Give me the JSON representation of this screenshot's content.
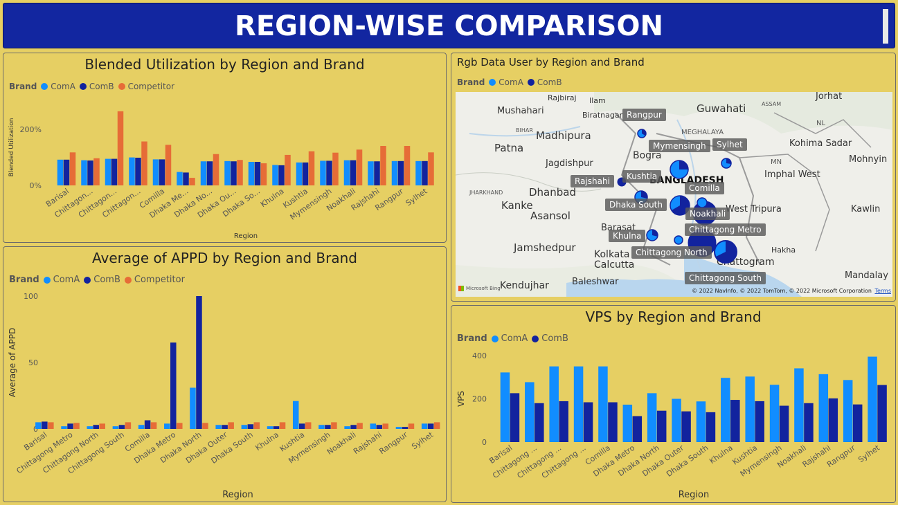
{
  "page_title": "REGION-WISE COMPARISON",
  "colors": {
    "comA": "#118dff",
    "comB": "#12239e",
    "competitor": "#e66c37",
    "background": "#e6cf63",
    "title_bg": "#1226a0"
  },
  "panel1": {
    "title": "Blended Utilization by Region and Brand",
    "legend": {
      "title": "Brand",
      "items": [
        "ComA",
        "ComB",
        "Competitor"
      ]
    },
    "xlabel": "Region",
    "ylabel": "Blended Utilization",
    "ticks": [
      "0%",
      "200%"
    ]
  },
  "panel2": {
    "title": "Average of APPD by Region and Brand",
    "legend": {
      "title": "Brand",
      "items": [
        "ComA",
        "ComB",
        "Competitor"
      ]
    },
    "xlabel": "Region",
    "ylabel": "Average of APPD",
    "ticks": [
      "0",
      "50",
      "100"
    ]
  },
  "panel3": {
    "title": "Rgb Data User by Region and Brand",
    "legend": {
      "title": "Brand",
      "items": [
        "ComA",
        "ComB"
      ]
    },
    "map_places": [
      "Rajbiraj",
      "Ilam",
      "Mushahari",
      "Biratnagar",
      "Madhipura",
      "Patna",
      "Jagdishpur",
      "Bogra",
      "Guwahati",
      "Jorhat",
      "Kohima Sadar",
      "Mohnyin",
      "Imphal West",
      "Dhanbad",
      "Kanke",
      "Asansol",
      "Jamshedpur",
      "Kolkata Calcutta",
      "Baleshwar",
      "Kendujhar",
      "Barasat",
      "West Tripura",
      "Kawlin",
      "Hakha",
      "Mandalay",
      "BANGLADESH",
      "MEGHALAYA",
      "ASSAM",
      "NL",
      "MN",
      "JHARKHAND",
      "BIHAR",
      "Chattogram"
    ],
    "bubble_labels": [
      "Rangpur",
      "Mymensingh",
      "Sylhet",
      "Kushtia",
      "Rajshahi",
      "Comilla",
      "Dhaka South",
      "Noakhali",
      "Khulna",
      "Chittagong Metro",
      "Chittagong North",
      "Chittagong South"
    ],
    "copyright": "© 2022 NavInfo, © 2022 TomTom, © 2022 Microsoft Corporation",
    "terms": "Terms",
    "logo_text": "Microsoft Bing"
  },
  "panel4": {
    "title": "VPS by Region and Brand",
    "legend": {
      "title": "Brand",
      "items": [
        "ComA",
        "ComB"
      ]
    },
    "xlabel": "Region",
    "ylabel": "VPS",
    "ticks": [
      "0",
      "200",
      "400"
    ]
  },
  "chart_data": [
    {
      "type": "bar",
      "title": "Blended Utilization by Region and Brand",
      "xlabel": "Region",
      "ylabel": "Blended Utilization",
      "categories": [
        "Barisal",
        "Chittagon...",
        "Chittagon...",
        "Chittagon...",
        "Comilla",
        "Dhaka Me...",
        "Dhaka No...",
        "Dhaka Ou...",
        "Dhaka So...",
        "Khulna",
        "Kushtia",
        "Mymensingh",
        "Noakhali",
        "Rajshahi",
        "Rangpur",
        "Sylhet"
      ],
      "ylim": [
        0,
        300
      ],
      "unit": "%",
      "series": [
        {
          "name": "ComA",
          "values": [
            92,
            90,
            95,
            100,
            93,
            48,
            86,
            87,
            84,
            73,
            82,
            88,
            90,
            86,
            87,
            87
          ]
        },
        {
          "name": "ComB",
          "values": [
            92,
            89,
            95,
            99,
            93,
            46,
            86,
            86,
            84,
            72,
            82,
            88,
            90,
            86,
            87,
            87
          ]
        },
        {
          "name": "Competitor",
          "values": [
            118,
            97,
            265,
            157,
            145,
            27,
            112,
            91,
            79,
            109,
            122,
            117,
            128,
            141,
            141,
            118
          ]
        }
      ]
    },
    {
      "type": "bar",
      "title": "Average of APPD by Region and Brand",
      "xlabel": "Region",
      "ylabel": "Average of APPD",
      "categories": [
        "Barisal",
        "Chittagong Metro",
        "Chittagong North",
        "Chittagong South",
        "Comilla",
        "Dhaka Metro",
        "Dhaka North",
        "Dhaka Outer",
        "Dhaka South",
        "Khulna",
        "Kushtia",
        "Mymensingh",
        "Noakhali",
        "Rajshahi",
        "Rangpur",
        "Sylhet"
      ],
      "ylim": [
        0,
        100
      ],
      "series": [
        {
          "name": "ComA",
          "values": [
            5,
            2,
            2,
            2,
            3,
            4,
            31,
            3,
            3,
            2,
            21,
            3,
            2,
            4,
            1.5,
            4
          ]
        },
        {
          "name": "ComB",
          "values": [
            5.5,
            4,
            3,
            3,
            6.5,
            65,
            100,
            3,
            3.5,
            2,
            4,
            3,
            3,
            3,
            1.5,
            4
          ]
        },
        {
          "name": "Competitor",
          "values": [
            5,
            4.5,
            4,
            5,
            5,
            4.5,
            4.5,
            5,
            5,
            5,
            5,
            5,
            4.5,
            4,
            4,
            5
          ]
        }
      ]
    },
    {
      "type": "bar",
      "title": "VPS by Region and Brand",
      "xlabel": "Region",
      "ylabel": "VPS",
      "categories": [
        "Barisal",
        "Chittagong ...",
        "Chittagong ...",
        "Chittagong ...",
        "Comilla",
        "Dhaka Metro",
        "Dhaka North",
        "Dhaka Outer",
        "Dhaka South",
        "Khulna",
        "Kushtia",
        "Mymensingh",
        "Noakhali",
        "Rajshahi",
        "Rangpur",
        "Sylhet"
      ],
      "ylim": [
        0,
        400
      ],
      "series": [
        {
          "name": "ComA",
          "values": [
            322,
            277,
            350,
            350,
            350,
            173,
            226,
            200,
            188,
            297,
            303,
            265,
            341,
            314,
            287,
            395
          ]
        },
        {
          "name": "ComB",
          "values": [
            226,
            180,
            189,
            184,
            184,
            120,
            145,
            142,
            138,
            195,
            189,
            168,
            180,
            202,
            174,
            264
          ]
        }
      ]
    }
  ]
}
